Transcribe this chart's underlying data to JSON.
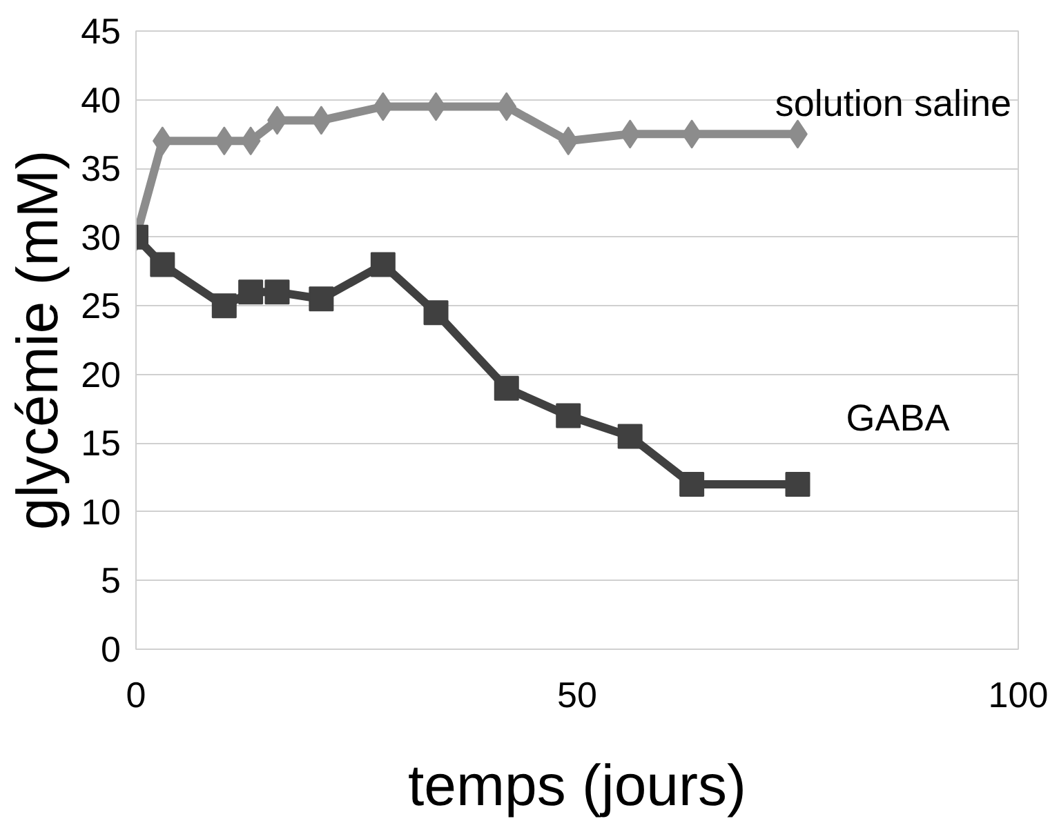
{
  "chart_data": {
    "type": "line",
    "xlabel": "temps (jours)",
    "ylabel": "glycémie (mM)",
    "xlim": [
      0,
      100
    ],
    "xticks": [
      0,
      50,
      100
    ],
    "ylim": [
      0,
      45
    ],
    "yticks": [
      0,
      5,
      10,
      15,
      20,
      25,
      30,
      35,
      40,
      45
    ],
    "grid": "y",
    "line_style": "solid",
    "x": [
      0,
      3,
      10,
      13,
      16,
      21,
      28,
      34,
      42,
      49,
      56,
      63,
      75
    ],
    "series": [
      {
        "name": "solution saline",
        "color": "#8c8c8c",
        "marker": "diamond",
        "values": [
          30,
          37,
          37,
          37,
          38.5,
          38.5,
          39.5,
          39.5,
          39.5,
          37,
          37.5,
          37.5,
          37.5
        ]
      },
      {
        "name": "GABA",
        "color": "#404040",
        "marker": "square",
        "values": [
          30,
          28,
          25,
          26,
          26,
          25.5,
          28,
          24.5,
          19,
          17,
          15.5,
          12,
          12
        ]
      }
    ]
  }
}
